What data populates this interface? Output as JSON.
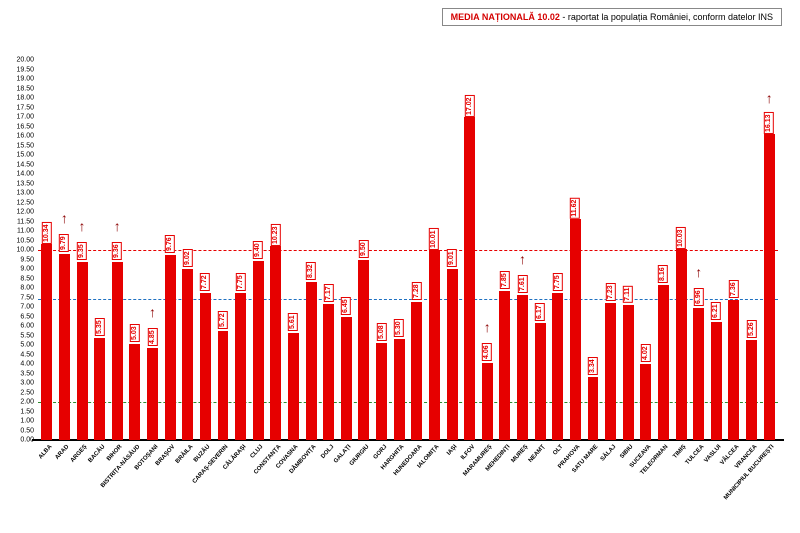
{
  "legend": {
    "title": "MEDIA NAȚIONALĂ",
    "value": "10.02",
    "suffix": " - raportat la populația României, conform datelor INS"
  },
  "chart": {
    "type": "bar",
    "ylim": [
      0,
      20
    ],
    "ytick_step": 0.5,
    "bar_color": "#e60000",
    "label_border": "#e60000",
    "background": "#ffffff",
    "arrow_color": "#8b0000",
    "reference_lines": [
      {
        "value": 10.02,
        "color": "#e60000"
      },
      {
        "value": 7.4,
        "color": "#1e70c0"
      },
      {
        "value": 2.0,
        "color": "#2e8b2e"
      }
    ],
    "arrow_indices": [
      1,
      2,
      4,
      6,
      25,
      27,
      37,
      41
    ],
    "categories": [
      "ALBA",
      "ARAD",
      "ARGEȘ",
      "BACĂU",
      "BIHOR",
      "BISTRIȚA-NĂSĂUD",
      "BOTOȘANI",
      "BRAȘOV",
      "BRĂILA",
      "BUZĂU",
      "CARAȘ-SEVERIN",
      "CĂLĂRAȘI",
      "CLUJ",
      "CONSTANȚA",
      "COVASNA",
      "DÂMBOVIȚA",
      "DOLJ",
      "GALAȚI",
      "GIURGIU",
      "GORJ",
      "HARGHITA",
      "HUNEDOARA",
      "IALOMIȚA",
      "IAȘI",
      "ILFOV",
      "MARAMUREȘ",
      "MEHEDINȚI",
      "MUREȘ",
      "NEAMȚ",
      "OLT",
      "PRAHOVA",
      "SATU MARE",
      "SĂLAJ",
      "SIBIU",
      "SUCEAVA",
      "TELEORMAN",
      "TIMIȘ",
      "TULCEA",
      "VASLUI",
      "VÂLCEA",
      "VRANCEA",
      "MUNICIPIUL BUCUREȘTI"
    ],
    "values": [
      10.34,
      9.79,
      9.35,
      5.35,
      9.36,
      5.03,
      4.85,
      9.76,
      9.02,
      7.72,
      5.72,
      7.75,
      9.4,
      10.23,
      5.61,
      8.32,
      7.17,
      6.45,
      9.5,
      5.08,
      5.3,
      7.28,
      10.01,
      9.01,
      17.02,
      4.06,
      7.85,
      7.61,
      6.17,
      7.75,
      11.62,
      3.34,
      7.23,
      7.11,
      4.02,
      8.16,
      10.03,
      6.96,
      6.21,
      7.36,
      5.26,
      16.13
    ]
  }
}
